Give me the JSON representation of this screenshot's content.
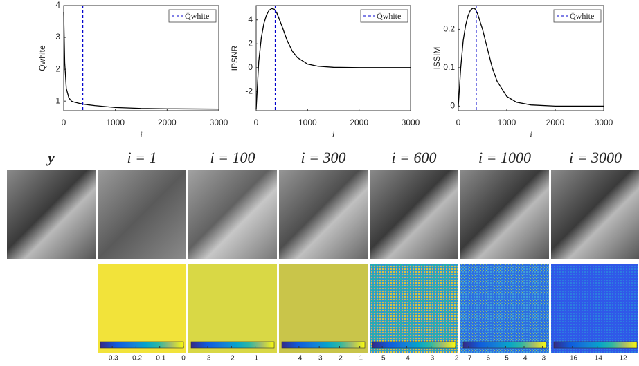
{
  "chart_data": [
    {
      "type": "line",
      "ylabel": "Qwhite",
      "xlabel": "i",
      "x": [
        0,
        20,
        50,
        100,
        150,
        200,
        300,
        400,
        600,
        800,
        1000,
        1500,
        2000,
        3000
      ],
      "values": [
        3.8,
        2.2,
        1.4,
        1.1,
        1.0,
        0.97,
        0.93,
        0.9,
        0.86,
        0.83,
        0.8,
        0.77,
        0.76,
        0.75
      ],
      "color": "#000000",
      "xlim": [
        0,
        3000
      ],
      "xticks": [
        0,
        1000,
        2000,
        3000
      ],
      "ylim": [
        0.7,
        4
      ],
      "yticks": [
        1,
        2,
        3,
        4
      ],
      "vline": {
        "name": "Q̄white",
        "x": 370,
        "color": "#0000cc"
      },
      "legend": "upper right"
    },
    {
      "type": "line",
      "ylabel": "IPSNR",
      "xlabel": "i",
      "x": [
        0,
        50,
        100,
        150,
        200,
        250,
        300,
        350,
        400,
        500,
        600,
        700,
        800,
        1000,
        1200,
        1500,
        2000,
        3000
      ],
      "values": [
        -3.5,
        0.5,
        2.5,
        3.7,
        4.4,
        4.8,
        4.95,
        4.9,
        4.6,
        3.5,
        2.3,
        1.4,
        0.85,
        0.3,
        0.12,
        0.03,
        0,
        0
      ],
      "color": "#000000",
      "xlim": [
        0,
        3000
      ],
      "xticks": [
        0,
        1000,
        2000,
        3000
      ],
      "ylim": [
        -3.6,
        5.2
      ],
      "yticks": [
        -2,
        0,
        2,
        4
      ],
      "vline": {
        "name": "Q̄white",
        "x": 370,
        "color": "#0000cc"
      },
      "legend": "upper right"
    },
    {
      "type": "line",
      "ylabel": "ISSIM",
      "xlabel": "i",
      "x": [
        0,
        50,
        100,
        150,
        200,
        250,
        300,
        350,
        400,
        500,
        600,
        700,
        800,
        1000,
        1200,
        1500,
        2000,
        3000
      ],
      "values": [
        0,
        0.1,
        0.17,
        0.21,
        0.235,
        0.25,
        0.255,
        0.253,
        0.24,
        0.2,
        0.15,
        0.1,
        0.065,
        0.025,
        0.01,
        0.003,
        0,
        0
      ],
      "color": "#000000",
      "xlim": [
        0,
        3000
      ],
      "xticks": [
        0,
        1000,
        2000,
        3000
      ],
      "ylim": [
        -0.012,
        0.262
      ],
      "yticks": [
        0,
        0.1,
        0.2
      ],
      "vline": {
        "name": "Q̄white",
        "x": 370,
        "color": "#0000cc"
      },
      "legend": "upper right"
    }
  ],
  "columns": [
    "y",
    "i = 1",
    "i = 100",
    "i = 300",
    "i = 600",
    "i = 1000",
    "i = 3000"
  ],
  "colorbars": [
    {
      "lim": [
        -0.35,
        0
      ],
      "ticks": [
        -0.3,
        -0.2,
        -0.1,
        0
      ]
    },
    {
      "lim": [
        -3.7,
        -0.2
      ],
      "ticks": [
        -3,
        -2,
        -1
      ]
    },
    {
      "lim": [
        -4.85,
        -0.75
      ],
      "ticks": [
        -4,
        -3,
        -2,
        -1
      ]
    },
    {
      "lim": [
        -5.4,
        -2
      ],
      "ticks": [
        -5,
        -4,
        -3,
        -2
      ]
    },
    {
      "lim": [
        -7.3,
        -2.8
      ],
      "ticks": [
        -7,
        -6,
        -5,
        -4,
        -3
      ]
    },
    {
      "lim": [
        -17.5,
        -10.8
      ],
      "ticks": [
        -16,
        -14,
        -12
      ]
    }
  ]
}
